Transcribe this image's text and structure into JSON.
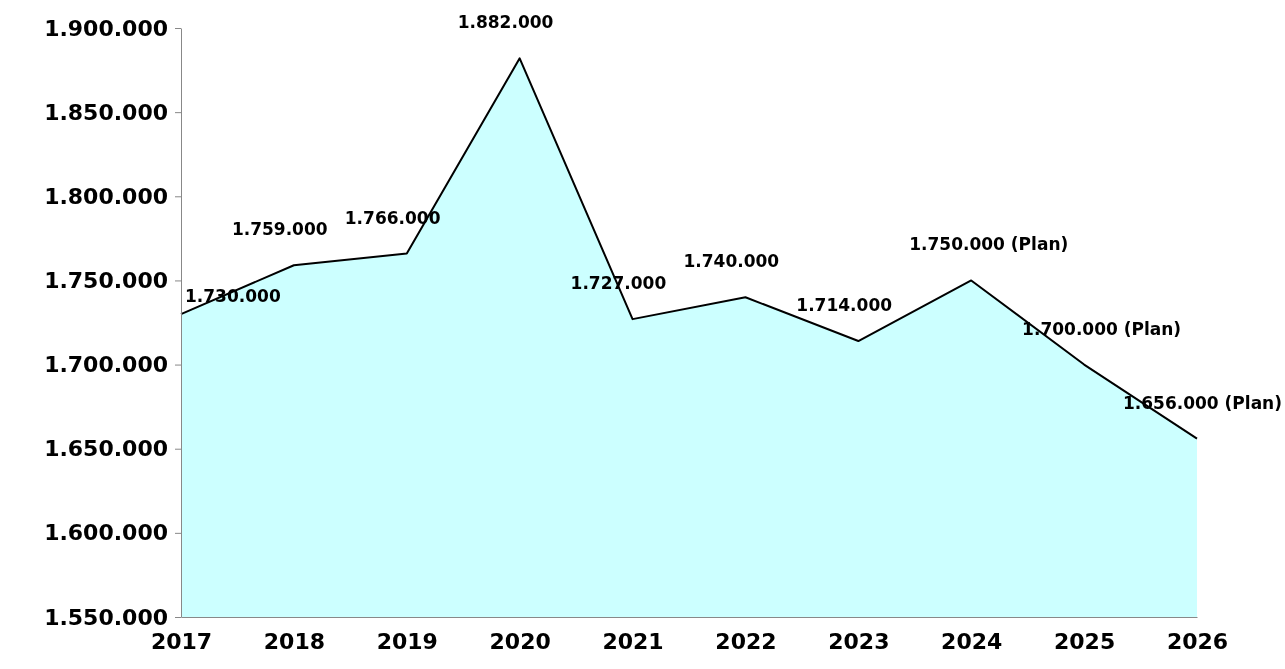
{
  "chart_data": {
    "type": "area",
    "categories": [
      "2017",
      "2018",
      "2019",
      "2020",
      "2021",
      "2022",
      "2023",
      "2024",
      "2025",
      "2026"
    ],
    "series": [
      {
        "color": "#ccffff",
        "values": [
          1730000,
          1759000,
          1766000,
          1882000,
          1727000,
          1740000,
          1714000,
          1750000,
          1700000,
          1656000
        ],
        "value_labels": [
          "1.730.000",
          "1.759.000",
          "1.766.000",
          "1.882.000",
          "1.727.000",
          "1.740.000",
          "1.714.000",
          "1.750.000 (Plan)",
          "1.700.000 (Plan)",
          "1.656.000 (Plan)"
        ]
      }
    ],
    "ylim": [
      1550000,
      1900000
    ],
    "yticks": [
      {
        "value": 1550000,
        "label": "1.550.000"
      },
      {
        "value": 1600000,
        "label": "1.600.000"
      },
      {
        "value": 1650000,
        "label": "1.650.000"
      },
      {
        "value": 1700000,
        "label": "1.700.000"
      },
      {
        "value": 1750000,
        "label": "1.750.000"
      },
      {
        "value": 1800000,
        "label": "1.800.000"
      },
      {
        "value": 1850000,
        "label": "1.850.000"
      },
      {
        "value": 1900000,
        "label": "1.900.000"
      }
    ],
    "grid": false
  }
}
